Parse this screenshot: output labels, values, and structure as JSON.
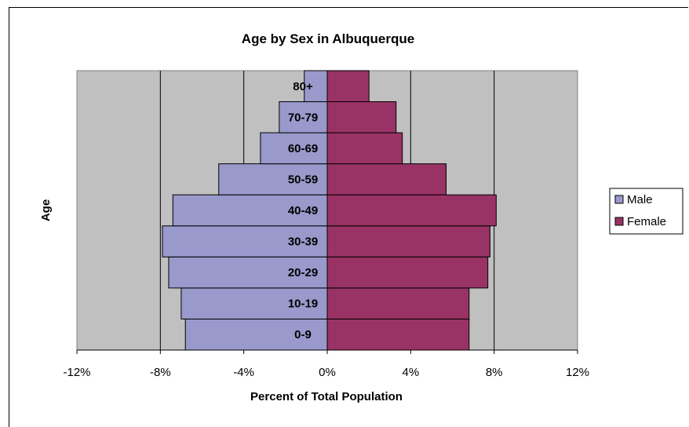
{
  "chart_data": {
    "type": "bar",
    "orientation": "horizontal",
    "title": "Age by Sex in Albuquerque",
    "xlabel": "Percent of Total Population",
    "ylabel": "Age",
    "categories": [
      "0-9",
      "10-19",
      "20-29",
      "30-39",
      "40-49",
      "50-59",
      "60-69",
      "70-79",
      "80+"
    ],
    "series": [
      {
        "name": "Male",
        "color": "#9999cc",
        "values": [
          -6.8,
          -7.0,
          -7.6,
          -7.9,
          -7.4,
          -5.2,
          -3.2,
          -2.3,
          -1.1
        ]
      },
      {
        "name": "Female",
        "color": "#993366",
        "values": [
          6.8,
          6.8,
          7.7,
          7.8,
          8.1,
          5.7,
          3.6,
          3.3,
          2.0
        ]
      }
    ],
    "xlim": [
      -12,
      12
    ],
    "xticks": [
      -12,
      -8,
      -4,
      0,
      4,
      8,
      12
    ],
    "xtick_labels": [
      "-12%",
      "-8%",
      "-4%",
      "0%",
      "4%",
      "8%",
      "12%"
    ],
    "plot_background": "#c0c0c0",
    "grid": "vertical",
    "legend_position": "right"
  }
}
